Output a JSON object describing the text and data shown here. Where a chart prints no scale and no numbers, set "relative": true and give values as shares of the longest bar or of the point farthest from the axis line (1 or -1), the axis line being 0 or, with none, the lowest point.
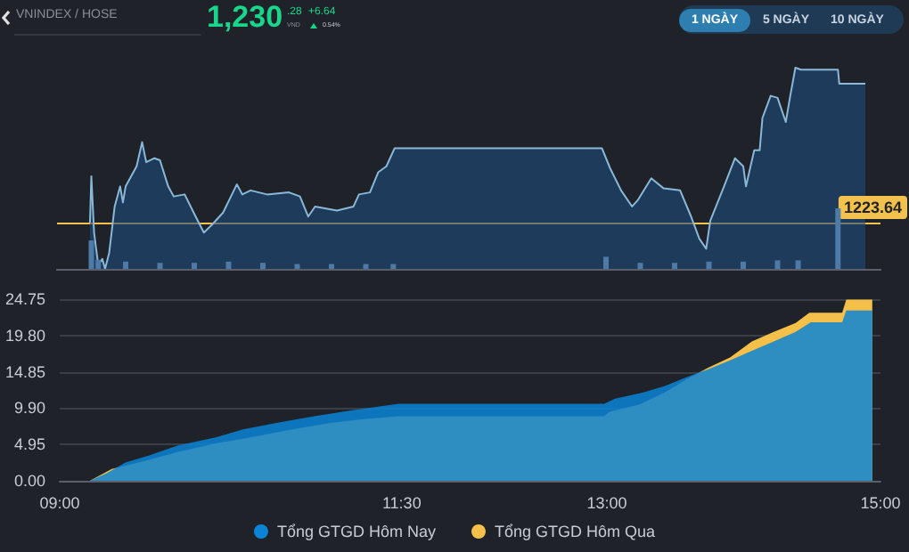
{
  "chart_data": [
    {
      "type": "area",
      "title": "VNINDEX / HOSE",
      "relative": true,
      "marker": "none",
      "grid": false,
      "legend": false,
      "xlim": [
        9,
        15
      ],
      "color": "#8ab8d8",
      "annotations": [
        "1,230",
        ".28",
        "VND",
        "+6.64",
        "0.54%",
        "1 NGÀY",
        "5 NGÀY",
        "10 NGÀY",
        "1223.64"
      ],
      "ref_lines": [
        {
          "axis": "y",
          "value": 0.23,
          "color": "#f2c14e"
        }
      ],
      "x": [
        9.24,
        9.25,
        9.27,
        9.3,
        9.33,
        9.35,
        9.38,
        9.42,
        9.46,
        9.48,
        9.5,
        9.58,
        9.62,
        9.65,
        9.71,
        9.75,
        9.81,
        9.85,
        9.93,
        10.01,
        10.07,
        10.13,
        10.21,
        10.31,
        10.35,
        10.41,
        10.53,
        10.69,
        10.77,
        10.83,
        10.88,
        11.04,
        11.16,
        11.2,
        11.28,
        11.34,
        11.4,
        11.46,
        12.97,
        13.03,
        13.11,
        13.19,
        13.23,
        13.33,
        13.42,
        13.54,
        13.62,
        13.68,
        13.73,
        13.76,
        13.86,
        13.94,
        14.0,
        14.02,
        14.08,
        14.12,
        14.14,
        14.2,
        14.25,
        14.31,
        14.34,
        14.38,
        14.42,
        14.46,
        14.69,
        14.7,
        14.89
      ],
      "values": [
        0.23,
        0.46,
        0.18,
        0.02,
        0.05,
        0,
        0.08,
        0.31,
        0.41,
        0.33,
        0.41,
        0.51,
        0.63,
        0.53,
        0.55,
        0.54,
        0.41,
        0.36,
        0.37,
        0.26,
        0.18,
        0.22,
        0.28,
        0.42,
        0.37,
        0.39,
        0.37,
        0.38,
        0.36,
        0.26,
        0.31,
        0.29,
        0.31,
        0.37,
        0.38,
        0.48,
        0.51,
        0.6,
        0.6,
        0.5,
        0.39,
        0.31,
        0.34,
        0.45,
        0.4,
        0.39,
        0.26,
        0.15,
        0.1,
        0.24,
        0.41,
        0.55,
        0.51,
        0.41,
        0.59,
        0.59,
        0.75,
        0.86,
        0.85,
        0.73,
        0.85,
        1,
        0.99,
        0.99,
        0.99,
        0.92,
        0.92
      ]
    },
    {
      "type": "bar",
      "relative": true,
      "grid": false,
      "legend": false,
      "xlim": [
        9,
        15
      ],
      "color": "#4d7aa6",
      "x": [
        9.25,
        9.3,
        9.5,
        9.75,
        10.0,
        10.25,
        10.5,
        10.75,
        11.0,
        11.25,
        11.45,
        13.0,
        13.25,
        13.5,
        13.75,
        14.0,
        14.25,
        14.4,
        14.69
      ],
      "values": [
        0.47,
        0.15,
        0.12,
        0.1,
        0.1,
        0.12,
        0.1,
        0.08,
        0.08,
        0.08,
        0.08,
        0.2,
        0.1,
        0.1,
        0.12,
        0.12,
        0.14,
        0.14,
        1
      ]
    },
    {
      "type": "area",
      "marker": "none",
      "grid": "y",
      "legend": "bottom",
      "xlim": [
        9,
        15
      ],
      "xticks": [
        {
          "value": 9,
          "label": "09:00"
        },
        {
          "value": 11.5,
          "label": "11:30"
        },
        {
          "value": 13,
          "label": "13:00"
        },
        {
          "value": 15,
          "label": "15:00"
        }
      ],
      "ylim": [
        0,
        24.75
      ],
      "yticks": [
        {
          "value": 0,
          "label": "0.00"
        },
        {
          "value": 4.95,
          "label": "4.95"
        },
        {
          "value": 9.9,
          "label": "9.90"
        },
        {
          "value": 14.85,
          "label": "14.85"
        },
        {
          "value": 19.8,
          "label": "19.80"
        },
        {
          "value": 24.75,
          "label": "24.75"
        }
      ],
      "series": [
        {
          "name": "Tổng GTGD Hôm Nay",
          "color": "#0a84d6",
          "x": [
            9.22,
            9.34,
            9.48,
            9.66,
            9.86,
            10.14,
            10.34,
            10.62,
            10.86,
            11.14,
            11.48,
            12.98,
            13.06,
            13.26,
            13.42,
            13.58,
            13.74,
            13.9,
            14.06,
            14.22,
            14.38,
            14.49,
            14.72,
            14.75,
            14.94
          ],
          "values": [
            0,
            1.0,
            2.5,
            3.5,
            4.8,
            5.9,
            7.0,
            8.0,
            8.8,
            9.6,
            10.5,
            10.5,
            11.2,
            12.0,
            12.9,
            14.1,
            15.2,
            16.4,
            17.7,
            19.0,
            20.3,
            21.6,
            21.6,
            23.2,
            23.2
          ]
        },
        {
          "name": "Tổng GTGD Hôm Qua",
          "color": "#f5c04a",
          "x": [
            9.22,
            9.38,
            9.62,
            9.86,
            10.14,
            10.42,
            10.7,
            10.98,
            11.22,
            11.48,
            12.98,
            13.02,
            13.24,
            13.42,
            13.58,
            13.74,
            13.9,
            14.06,
            14.22,
            14.38,
            14.48,
            14.72,
            14.75,
            14.94
          ],
          "values": [
            0,
            1.6,
            2.7,
            3.9,
            5.1,
            6.0,
            7.0,
            7.9,
            8.4,
            8.8,
            8.8,
            9.4,
            10.4,
            12.0,
            13.8,
            15.4,
            16.8,
            19.0,
            20.3,
            21.5,
            22.9,
            22.9,
            24.7,
            24.7
          ]
        }
      ]
    }
  ]
}
